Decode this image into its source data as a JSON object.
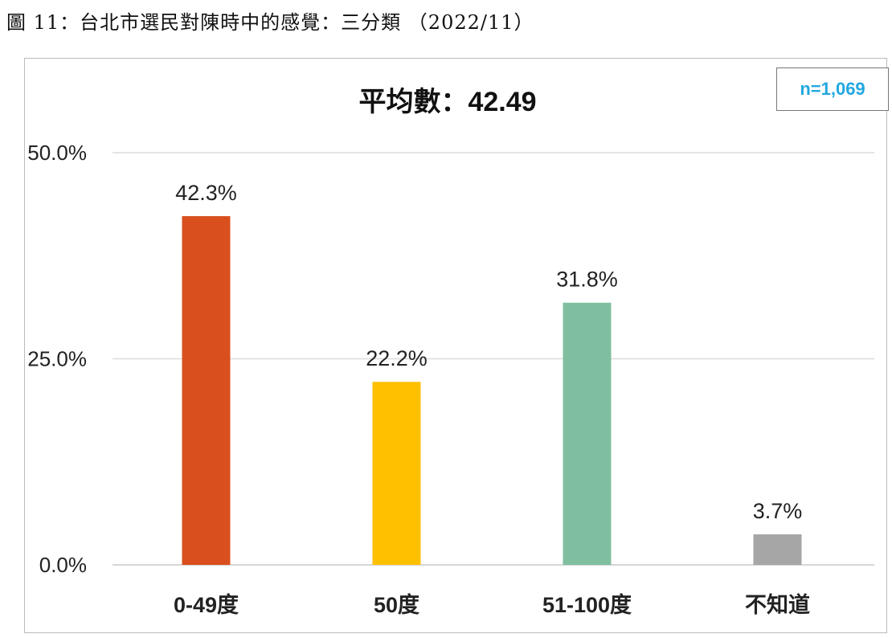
{
  "figure_title": "圖 11：台北市選民對陳時中的感覺：三分類 （2022/11）",
  "sample_note": "n=1,069",
  "chart_data": {
    "type": "bar",
    "title": "平均數：42.49",
    "categories": [
      "0-49度",
      "50度",
      "51-100度",
      "不知道"
    ],
    "values": [
      42.3,
      22.2,
      31.8,
      3.7
    ],
    "value_labels": [
      "42.3%",
      "22.2%",
      "31.8%",
      "3.7%"
    ],
    "colors": [
      "#D9501E",
      "#FFC000",
      "#80BEA0",
      "#A6A6A6"
    ],
    "ylim": [
      0,
      50
    ],
    "yticks": [
      0,
      25,
      50
    ],
    "ytick_labels": [
      "0.0%",
      "25.0%",
      "50.0%"
    ],
    "xlabel": "",
    "ylabel": "",
    "grid": true,
    "legend": "none"
  }
}
